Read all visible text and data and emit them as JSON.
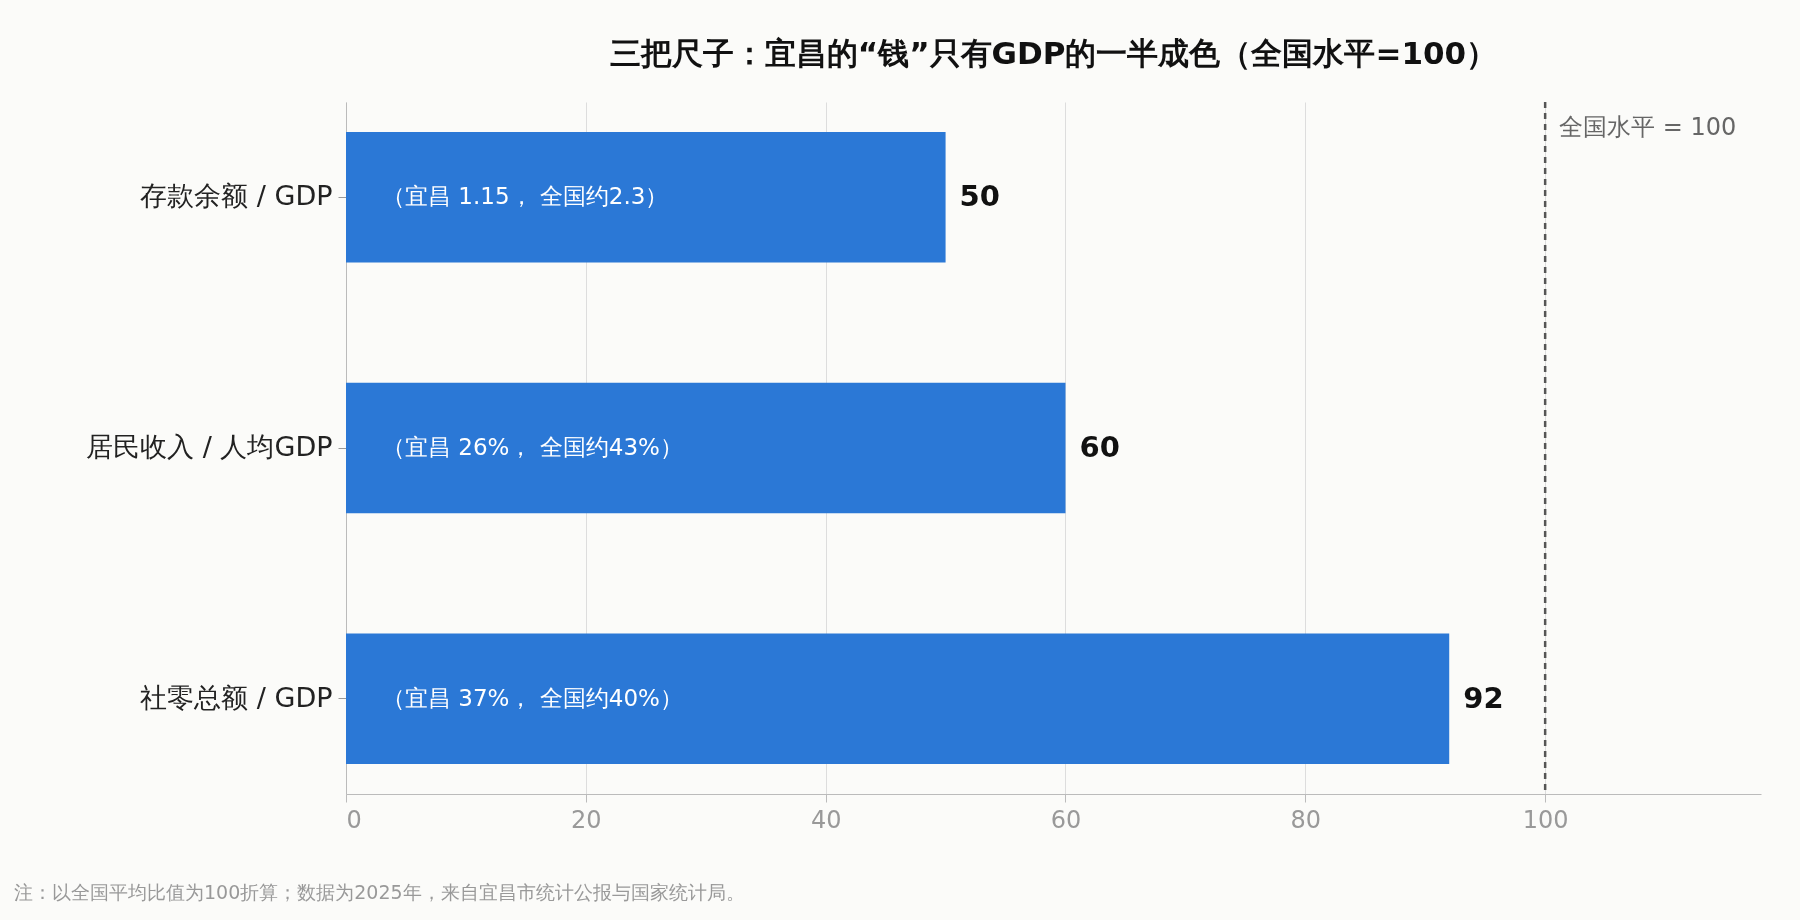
{
  "chart_data": {
    "type": "bar",
    "orientation": "horizontal",
    "title": "三把尺子：宜昌的“钱”只有GDP的一半成色（全国水平=100）",
    "categories": [
      "存款余额 / GDP",
      "居民收入 / 人均GDP",
      "社零总额 / GDP"
    ],
    "values": [
      50,
      60,
      92
    ],
    "color": "#2b78d6",
    "data_labels": true,
    "xlim": [
      0,
      118
    ],
    "xticks": [
      0,
      20,
      40,
      60,
      80,
      100
    ],
    "grid": "x",
    "ref_lines": [
      {
        "axis": "x",
        "value": 100,
        "label": "全国水平 = 100",
        "color": "#555555",
        "line_style": "dashed"
      }
    ],
    "annotations": [
      "（宜昌 1.15， 全国约2.3）",
      "（宜昌 26%， 全国约43%）",
      "（宜昌 37%， 全国约40%）",
      "注：以全国平均比值为100折算；数据为2025年，来自宜昌市统计公报与国家统计局。"
    ]
  }
}
